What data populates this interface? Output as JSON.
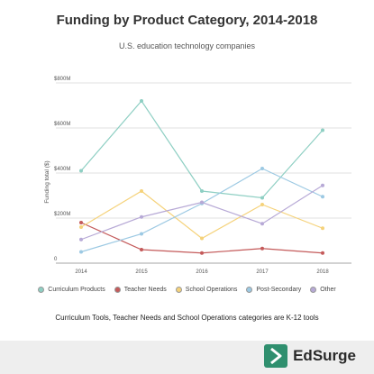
{
  "chart_data": {
    "type": "line",
    "title": "Funding by Product Category, 2014-2018",
    "subtitle": "U.S. education technology companies",
    "ylabel": "Funding total ($)",
    "xlabel": "",
    "x": [
      "2014",
      "2015",
      "2016",
      "2017",
      "2018"
    ],
    "ylim": [
      0,
      800
    ],
    "yticks": [
      0,
      200,
      400,
      600,
      800
    ],
    "ytick_labels": [
      "0",
      "$200M",
      "$400M",
      "$600M",
      "$800M"
    ],
    "grid": true,
    "legend_position": "bottom",
    "series": [
      {
        "name": "Curriculum Products",
        "color": "#8ecfc3",
        "values": [
          410,
          720,
          320,
          290,
          590
        ]
      },
      {
        "name": "Teacher Needs",
        "color": "#c45a5a",
        "values": [
          180,
          60,
          45,
          65,
          45
        ]
      },
      {
        "name": "School Operations",
        "color": "#f5d27a",
        "values": [
          160,
          320,
          110,
          260,
          155
        ]
      },
      {
        "name": "Post-Secondary",
        "color": "#9cc9e3",
        "values": [
          50,
          130,
          265,
          420,
          295
        ]
      },
      {
        "name": "Other",
        "color": "#b7a9d6",
        "values": [
          105,
          205,
          270,
          175,
          345
        ]
      }
    ]
  },
  "footnote": "Curriculum Tools, Teacher Needs and School Operations categories are K-12 tools",
  "brand": {
    "name": "EdSurge",
    "color": "#2f8f6e"
  }
}
